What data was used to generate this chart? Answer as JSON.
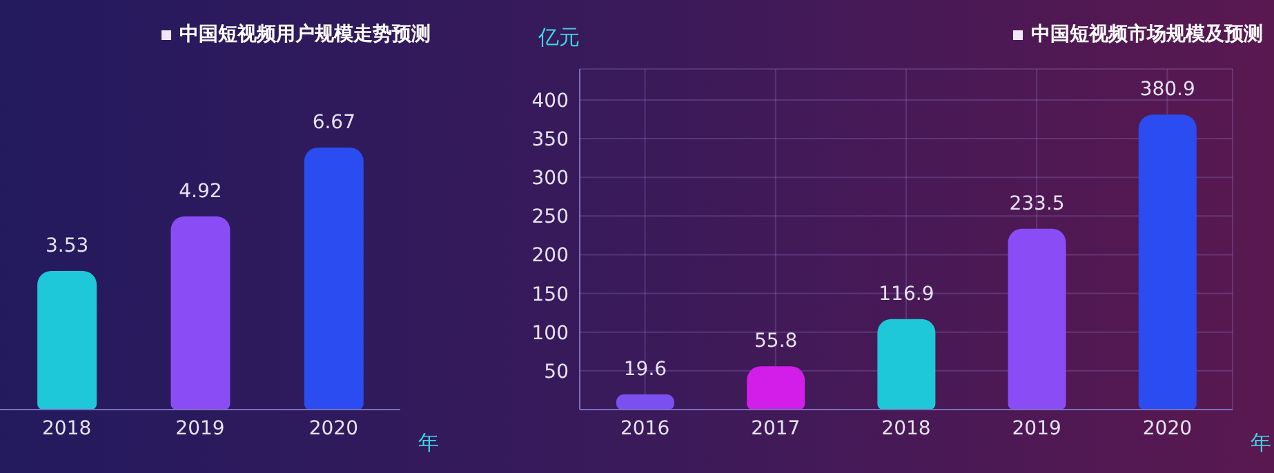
{
  "chart_data": [
    {
      "type": "bar",
      "title": "中国短视频用户规模走势预测",
      "categories": [
        "2018",
        "2019",
        "2020"
      ],
      "values": [
        3.53,
        4.92,
        6.67
      ],
      "colors": [
        "#1ec8d8",
        "#8a4cf5",
        "#2a4cf0"
      ],
      "xlabel": "年",
      "data_labels": true,
      "tick_labels": "x"
    },
    {
      "type": "bar",
      "title": "中国短视频市场规模及预测",
      "categories": [
        "2016",
        "2017",
        "2018",
        "2019",
        "2020"
      ],
      "values": [
        19.6,
        55.8,
        116.9,
        233.5,
        380.9
      ],
      "colors": [
        "#7a50f0",
        "#d21ee8",
        "#1ec8d8",
        "#8a4cf5",
        "#2a4cf0"
      ],
      "xlabel": "年",
      "ylabel": "亿元",
      "ylim": [
        0,
        440
      ],
      "yticks": [
        50,
        100,
        150,
        200,
        250,
        300,
        350,
        400
      ],
      "data_labels": true,
      "grid": true
    }
  ]
}
